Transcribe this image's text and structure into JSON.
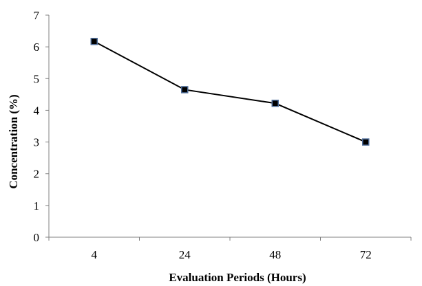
{
  "chart_data": {
    "type": "line",
    "title": "",
    "xlabel": "Evaluation Periods (Hours)",
    "ylabel": "Concentration (%)",
    "categories": [
      "4",
      "24",
      "48",
      "72"
    ],
    "series": [
      {
        "values": [
          6.17,
          4.65,
          4.22,
          3.0
        ],
        "line_color": "#000000",
        "marker": "square",
        "marker_fill": "#000000",
        "marker_edge": "#4f6e9a"
      }
    ],
    "ylim": [
      0,
      7
    ],
    "yticks": [
      "0",
      "1",
      "2",
      "3",
      "4",
      "5",
      "6",
      "7"
    ],
    "grid": false,
    "legend": "none"
  }
}
